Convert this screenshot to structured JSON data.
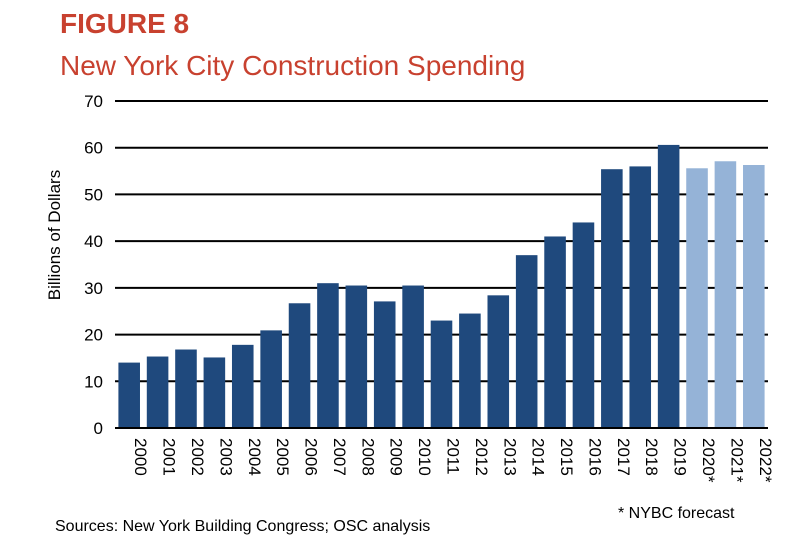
{
  "header": {
    "figure_label": "FIGURE 8",
    "title": "New York City Construction Spending"
  },
  "footer": {
    "sources": "Sources: New York Building Congress; OSC analysis",
    "note": "* NYBC forecast"
  },
  "colors": {
    "title": "#c8412f",
    "actual_bar": "#1f497d",
    "forecast_bar": "#95b3d7"
  },
  "chart_data": {
    "type": "bar",
    "title": "New York City Construction Spending",
    "xlabel": "",
    "ylabel": "Billions of Dollars",
    "ylim": [
      0,
      70
    ],
    "yticks": [
      0,
      10,
      20,
      30,
      40,
      50,
      60,
      70
    ],
    "grid": true,
    "categories": [
      "2000",
      "2001",
      "2002",
      "2003",
      "2004",
      "2005",
      "2006",
      "2007",
      "2008",
      "2009",
      "2010",
      "2011",
      "2012",
      "2013",
      "2014",
      "2015",
      "2016",
      "2017",
      "2018",
      "2019",
      "2020*",
      "2021*",
      "2022*"
    ],
    "values": [
      14.0,
      15.3,
      16.8,
      15.1,
      17.8,
      20.9,
      26.7,
      31.0,
      30.5,
      27.1,
      30.5,
      23.0,
      24.5,
      28.4,
      37.0,
      41.0,
      44.0,
      55.4,
      56.0,
      60.6,
      55.6,
      57.1,
      56.3
    ],
    "forecast": [
      false,
      false,
      false,
      false,
      false,
      false,
      false,
      false,
      false,
      false,
      false,
      false,
      false,
      false,
      false,
      false,
      false,
      false,
      false,
      false,
      true,
      true,
      true
    ]
  }
}
